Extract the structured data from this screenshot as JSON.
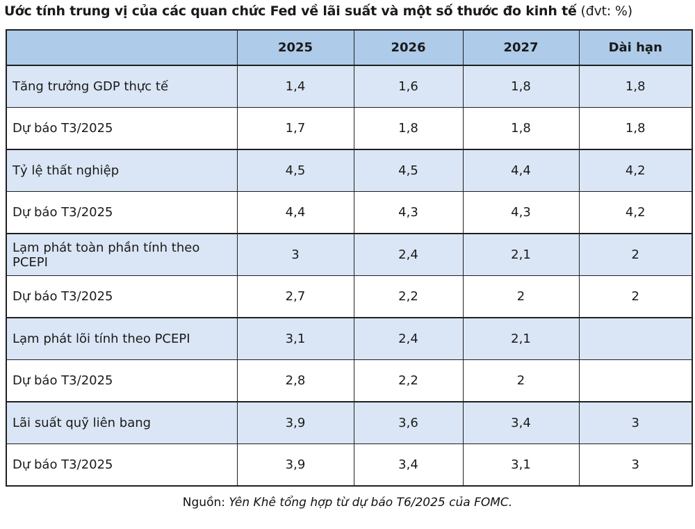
{
  "title": {
    "main": "Ước tính trung vị của các quan chức Fed về lãi suất và một số thước đo kinh tế",
    "unit": " (đvt: %)"
  },
  "table": {
    "columns": {
      "blank": "",
      "y2025": "2025",
      "y2026": "2026",
      "y2027": "2027",
      "long_run": "Dài hạn"
    },
    "rows": [
      {
        "label": "Tăng trưởng GDP thực tế",
        "values": [
          "1,4",
          "1,6",
          "1,8",
          "1,8"
        ]
      },
      {
        "label": "Dự báo T3/2025",
        "values": [
          "1,7",
          "1,8",
          "1,8",
          "1,8"
        ]
      },
      {
        "label": "Tỷ lệ thất nghiệp",
        "values": [
          "4,5",
          "4,5",
          "4,4",
          "4,2"
        ]
      },
      {
        "label": "Dự báo T3/2025",
        "values": [
          "4,4",
          "4,3",
          "4,3",
          "4,2"
        ]
      },
      {
        "label": "Lạm phát toàn phần tính theo PCEPI",
        "values": [
          "3",
          "2,4",
          "2,1",
          "2"
        ]
      },
      {
        "label": "Dự báo T3/2025",
        "values": [
          "2,7",
          "2,2",
          "2",
          "2"
        ]
      },
      {
        "label": "Lạm phát lõi tính theo PCEPI",
        "values": [
          "3,1",
          "2,4",
          "2,1",
          ""
        ]
      },
      {
        "label": "Dự báo T3/2025",
        "values": [
          "2,8",
          "2,2",
          "2",
          ""
        ]
      },
      {
        "label": "Lãi suất quỹ liên bang",
        "values": [
          "3,9",
          "3,6",
          "3,4",
          "3"
        ]
      },
      {
        "label": "Dự báo T3/2025",
        "values": [
          "3,9",
          "3,4",
          "3,1",
          "3"
        ]
      }
    ]
  },
  "footer": {
    "prefix": "Nguồn: ",
    "text": "Yên Khê tổng hợp từ dự báo T6/2025 của FOMC."
  },
  "colors": {
    "header_bg": "#aecbe9",
    "highlight_row_bg": "#dae6f5",
    "border": "#1f1f1f",
    "text": "#1a1a1a"
  },
  "chart_data": {
    "type": "table",
    "title": "Ước tính trung vị của các quan chức Fed về lãi suất và một số thước đo kinh tế (đvt: %)",
    "columns": [
      "2025",
      "2026",
      "2027",
      "Dài hạn"
    ],
    "rows": [
      {
        "label": "Tăng trưởng GDP thực tế",
        "values": [
          1.4,
          1.6,
          1.8,
          1.8
        ]
      },
      {
        "label": "Dự báo T3/2025",
        "values": [
          1.7,
          1.8,
          1.8,
          1.8
        ]
      },
      {
        "label": "Tỷ lệ thất nghiệp",
        "values": [
          4.5,
          4.5,
          4.4,
          4.2
        ]
      },
      {
        "label": "Dự báo T3/2025",
        "values": [
          4.4,
          4.3,
          4.3,
          4.2
        ]
      },
      {
        "label": "Lạm phát toàn phần tính theo PCEPI",
        "values": [
          3,
          2.4,
          2.1,
          2
        ]
      },
      {
        "label": "Dự báo T3/2025",
        "values": [
          2.7,
          2.2,
          2,
          2
        ]
      },
      {
        "label": "Lạm phát lõi tính theo PCEPI",
        "values": [
          3.1,
          2.4,
          2.1,
          null
        ]
      },
      {
        "label": "Dự báo T3/2025",
        "values": [
          2.8,
          2.2,
          2,
          null
        ]
      },
      {
        "label": "Lãi suất quỹ liên bang",
        "values": [
          3.9,
          3.6,
          3.4,
          3
        ]
      },
      {
        "label": "Dự báo T3/2025",
        "values": [
          3.9,
          3.4,
          3.1,
          3
        ]
      }
    ],
    "source": "Nguồn: Yên Khê tổng hợp từ dự báo T6/2025 của FOMC.",
    "notes": "Blue rows = June 2025 median projections; white 'Dự báo T3/2025' rows = March 2025 projections; empty cells in 'Dài hạn' column for core PCE inflation rows."
  }
}
